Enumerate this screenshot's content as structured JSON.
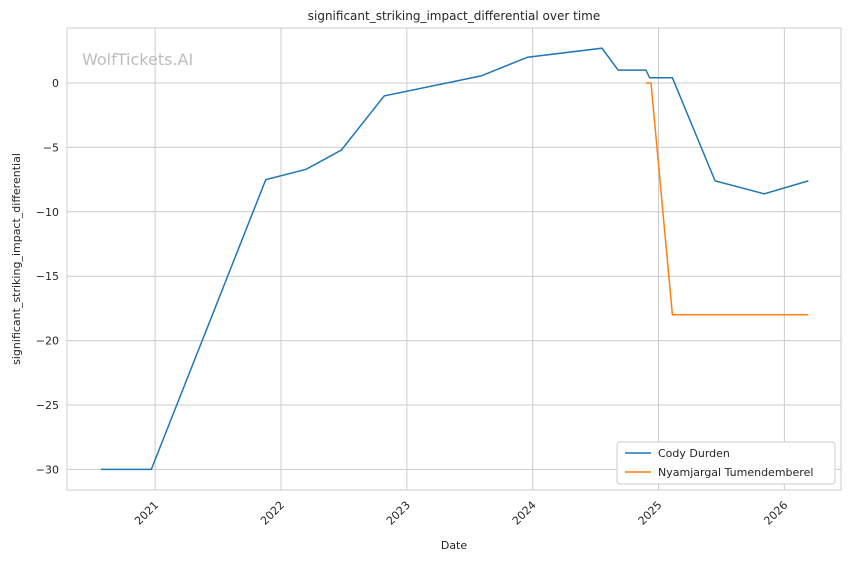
{
  "chart_data": {
    "type": "line",
    "title": "significant_striking_impact_differential over time",
    "xlabel": "Date",
    "ylabel": "significant_striking_impact_differential",
    "watermark": "WolfTickets.AI",
    "xlim": [
      2020.3,
      2026.45
    ],
    "ylim": [
      -31.6,
      4.27
    ],
    "xticks": [
      2021,
      2022,
      2023,
      2024,
      2025,
      2026
    ],
    "xtick_labels": [
      "2021",
      "2022",
      "2023",
      "2024",
      "2025",
      "2026"
    ],
    "yticks": [
      0,
      -5,
      -10,
      -15,
      -20,
      -25,
      -30
    ],
    "ytick_labels": [
      "0",
      "−5",
      "−10",
      "−15",
      "−20",
      "−25",
      "−30"
    ],
    "grid": true,
    "legend_position": "bottom-right",
    "series": [
      {
        "name": "Cody Durden",
        "color": "#1f77b4",
        "x": [
          2020.57,
          2020.97,
          2021.88,
          2022.2,
          2022.48,
          2022.82,
          2023.59,
          2023.96,
          2024.55,
          2024.68,
          2024.9,
          2024.93,
          2025.11,
          2025.45,
          2025.84,
          2026.19
        ],
        "y": [
          -30,
          -30,
          -7.5,
          -6.7,
          -5.2,
          -1,
          0.55,
          2,
          2.7,
          1,
          1,
          0.4,
          0.4,
          -7.6,
          -8.6,
          -7.6
        ]
      },
      {
        "name": "Nyamjargal Tumendemberel",
        "color": "#ff7f0e",
        "x": [
          2024.9,
          2024.94,
          2025.11,
          2026.19
        ],
        "y": [
          0,
          0,
          -18,
          -18
        ]
      }
    ]
  }
}
